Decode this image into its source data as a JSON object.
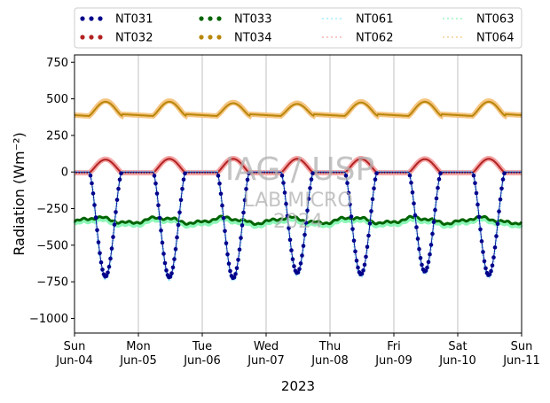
{
  "chart_data": {
    "type": "scatter",
    "ylabel": "Radiation (Wm⁻²)",
    "xlabel": "2023",
    "ylim": [
      -1100,
      800
    ],
    "y_ticks": [
      -1000,
      -750,
      -500,
      -250,
      0,
      250,
      500,
      750
    ],
    "xlim_days": [
      0,
      7
    ],
    "x_ticks": [
      {
        "day": "Sun",
        "date": "Jun-04"
      },
      {
        "day": "Mon",
        "date": "Jun-05"
      },
      {
        "day": "Tue",
        "date": "Jun-06"
      },
      {
        "day": "Wed",
        "date": "Jun-07"
      },
      {
        "day": "Thu",
        "date": "Jun-08"
      },
      {
        "day": "Fri",
        "date": "Jun-09"
      },
      {
        "day": "Sat",
        "date": "Jun-10"
      },
      {
        "day": "Sun",
        "date": "Jun-11"
      }
    ],
    "grid": "vertical",
    "legend_position": "top, outside",
    "legend": [
      {
        "name": "NT031",
        "color": "#00008b",
        "style": "dots"
      },
      {
        "name": "NT032",
        "color": "#b22222",
        "style": "dots"
      },
      {
        "name": "NT033",
        "color": "#006400",
        "style": "dots"
      },
      {
        "name": "NT034",
        "color": "#b8860b",
        "style": "dots"
      },
      {
        "name": "NT061",
        "color": "#87e8ff",
        "style": "dotted"
      },
      {
        "name": "NT062",
        "color": "#f4a0a0",
        "style": "dotted"
      },
      {
        "name": "NT063",
        "color": "#7ff5b0",
        "style": "dotted"
      },
      {
        "name": "NT064",
        "color": "#f5c27a",
        "style": "dotted"
      }
    ],
    "series": [
      {
        "name": "NT031",
        "color": "#00008b",
        "kind": "net shortwave",
        "night_level": 0,
        "daily_min": [
          -715,
          -720,
          -725,
          -690,
          -700,
          -680,
          -705
        ]
      },
      {
        "name": "NT061",
        "color": "#87e8ff",
        "kind": "net shortwave",
        "night_level": 0,
        "daily_min": [
          -730,
          -735,
          -740,
          -705,
          -715,
          -695,
          -720
        ]
      },
      {
        "name": "NT032",
        "color": "#b22222",
        "kind": "daytime bump",
        "night_level": -5,
        "daily_peak": [
          85,
          90,
          90,
          90,
          90,
          88,
          90
        ]
      },
      {
        "name": "NT062",
        "color": "#f4a0a0",
        "kind": "daytime bump",
        "night_level": -5,
        "daily_peak": [
          88,
          92,
          92,
          92,
          92,
          90,
          92
        ]
      },
      {
        "name": "NT034",
        "color": "#b8860b",
        "kind": "daytime bump",
        "night_level": 385,
        "daily_peak": [
          480,
          480,
          470,
          465,
          475,
          480,
          480
        ]
      },
      {
        "name": "NT064",
        "color": "#f5c27a",
        "kind": "daytime bump",
        "night_level": 385,
        "daily_peak": [
          485,
          485,
          475,
          470,
          480,
          485,
          485
        ]
      },
      {
        "name": "NT033",
        "color": "#006400",
        "kind": "longwave",
        "mean": -330,
        "range": [
          -380,
          -300
        ]
      },
      {
        "name": "NT063",
        "color": "#7ff5b0",
        "kind": "longwave",
        "mean": -345,
        "range": [
          -390,
          -320
        ]
      }
    ]
  },
  "watermark": {
    "line1": "IAG / USP",
    "line2": "LAB MICRO",
    "line3": "2024"
  }
}
